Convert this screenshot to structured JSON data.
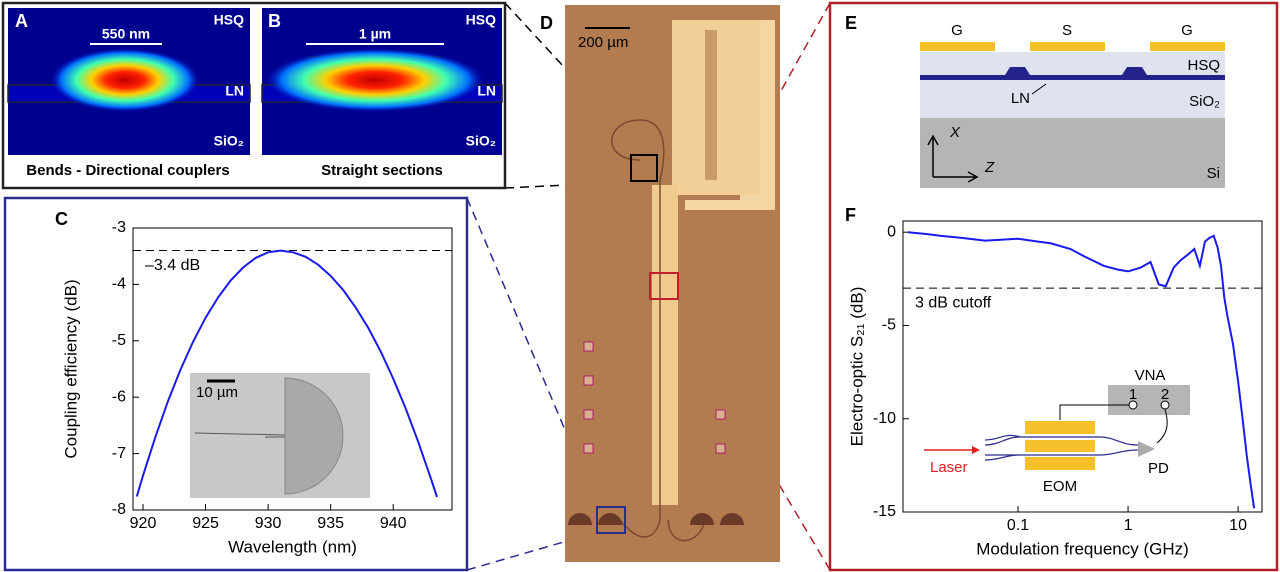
{
  "panels": {
    "A": {
      "letter": "A",
      "labels": [
        "HSQ",
        "LN",
        "SiO₂"
      ],
      "width": "550 nm",
      "caption": "Bends - Directional couplers"
    },
    "B": {
      "letter": "B",
      "labels": [
        "HSQ",
        "LN",
        "SiO₂"
      ],
      "width": "1 µm",
      "caption": "Straight sections"
    },
    "D": {
      "letter": "D",
      "scale": "200 µm"
    },
    "E": {
      "letter": "E",
      "electrodes": [
        "G",
        "S",
        "G"
      ],
      "layers": [
        "HSQ",
        "LN",
        "SiO₂",
        "Si"
      ],
      "axes": [
        "X",
        "Z"
      ]
    }
  },
  "chart_data": [
    {
      "type": "line",
      "letter": "C",
      "xlabel": "Wavelength (nm)",
      "ylabel": "Coupling efficiency (dB)",
      "x": [
        919.5,
        920,
        921,
        922,
        923,
        924,
        925,
        926,
        927,
        928,
        929,
        930,
        931,
        932,
        933,
        934,
        935,
        936,
        937,
        938,
        939,
        940,
        941,
        942,
        943,
        943.5
      ],
      "values": [
        -7.76,
        -7.39,
        -6.7,
        -6.07,
        -5.51,
        -5.02,
        -4.59,
        -4.23,
        -3.93,
        -3.7,
        -3.53,
        -3.43,
        -3.4,
        -3.43,
        -3.51,
        -3.65,
        -3.85,
        -4.1,
        -4.41,
        -4.77,
        -5.19,
        -5.67,
        -6.2,
        -6.79,
        -7.43,
        -7.77
      ],
      "color": "#1a1aee",
      "xlim": [
        919.2,
        944.7
      ],
      "ylim": [
        -8,
        -3
      ],
      "xticks": [
        920,
        925,
        930,
        935,
        940
      ],
      "yticks": [
        -8,
        -7,
        -6,
        -5,
        -4,
        -3
      ],
      "reference": {
        "value": -3.4,
        "label": "–3.4 dB"
      },
      "inset_scale": "10 µm"
    },
    {
      "type": "line",
      "letter": "F",
      "xlabel": "Modulation frequency (GHz)",
      "ylabel": "Electro-optic S₂₁ (dB)",
      "x": [
        0.01,
        0.015,
        0.02,
        0.03,
        0.05,
        0.07,
        0.1,
        0.15,
        0.2,
        0.3,
        0.4,
        0.6,
        0.8,
        1,
        1.3,
        1.6,
        1.9,
        2.2,
        2.6,
        3,
        3.5,
        4,
        4.5,
        5,
        5.5,
        6,
        6.5,
        7,
        7.5,
        8,
        9,
        10,
        11,
        12,
        13,
        14
      ],
      "values": [
        0,
        -0.1,
        -0.2,
        -0.3,
        -0.45,
        -0.4,
        -0.35,
        -0.5,
        -0.6,
        -0.9,
        -1.3,
        -1.8,
        -2.0,
        -2.1,
        -1.9,
        -1.6,
        -2.8,
        -2.9,
        -1.9,
        -1.5,
        -1.2,
        -0.9,
        -1.8,
        -0.5,
        -0.3,
        -0.2,
        -0.8,
        -1.8,
        -3.5,
        -4.5,
        -6,
        -8,
        -10,
        -12,
        -13.5,
        -14.8
      ],
      "color": "#1a1aee",
      "xscale": "log",
      "xlim": [
        0.009,
        16.5
      ],
      "ylim": [
        -15,
        0.6
      ],
      "xticks": [
        0.1,
        1,
        10
      ],
      "yticks": [
        -15,
        -10,
        -5,
        0
      ],
      "reference": {
        "value": -3,
        "label": "3 dB cutoff"
      },
      "inset_labels": {
        "vna": "VNA",
        "port1": "1",
        "port2": "2",
        "laser": "Laser",
        "eom": "EOM",
        "pd": "PD"
      }
    }
  ]
}
